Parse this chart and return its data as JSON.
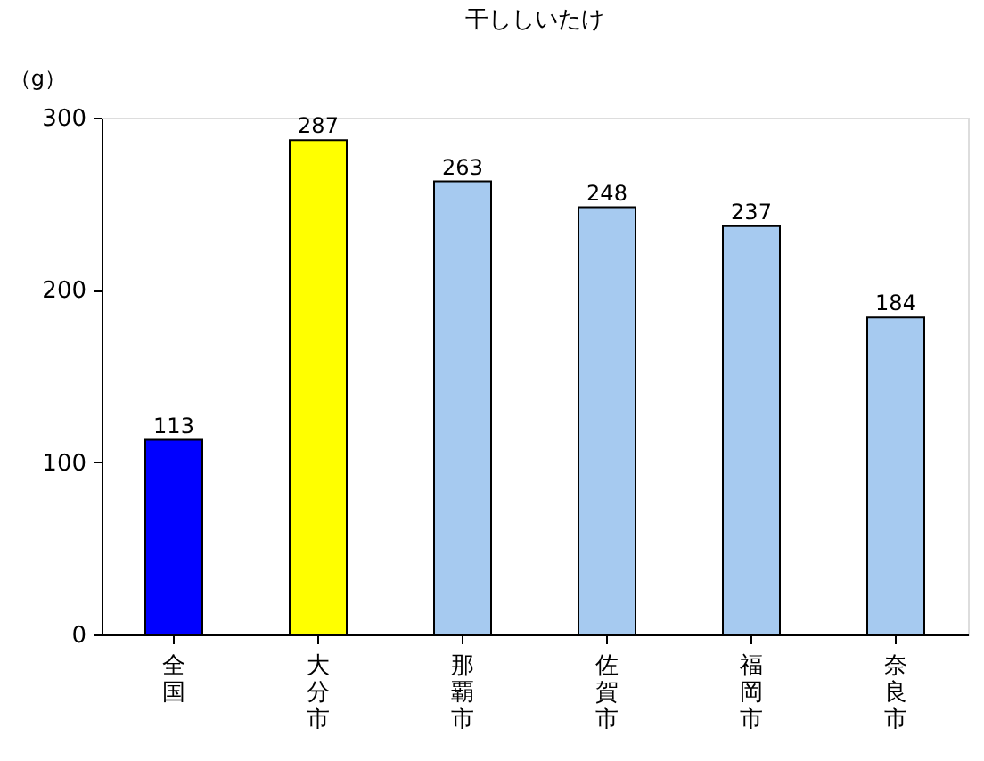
{
  "chart_data": {
    "type": "bar",
    "title": "干ししいたけ",
    "ylabel": "（g）",
    "categories": [
      "全国",
      "大分市",
      "那覇市",
      "佐賀市",
      "福岡市",
      "奈良市"
    ],
    "values": [
      113,
      287,
      263,
      248,
      237,
      184
    ],
    "colors": [
      "#0000ff",
      "#ffff00",
      "#a6caf0",
      "#a6caf0",
      "#a6caf0",
      "#a6caf0"
    ],
    "ylim": [
      0,
      300
    ],
    "yticks": [
      0,
      100,
      200,
      300
    ],
    "grid": false,
    "data_labels": true
  }
}
